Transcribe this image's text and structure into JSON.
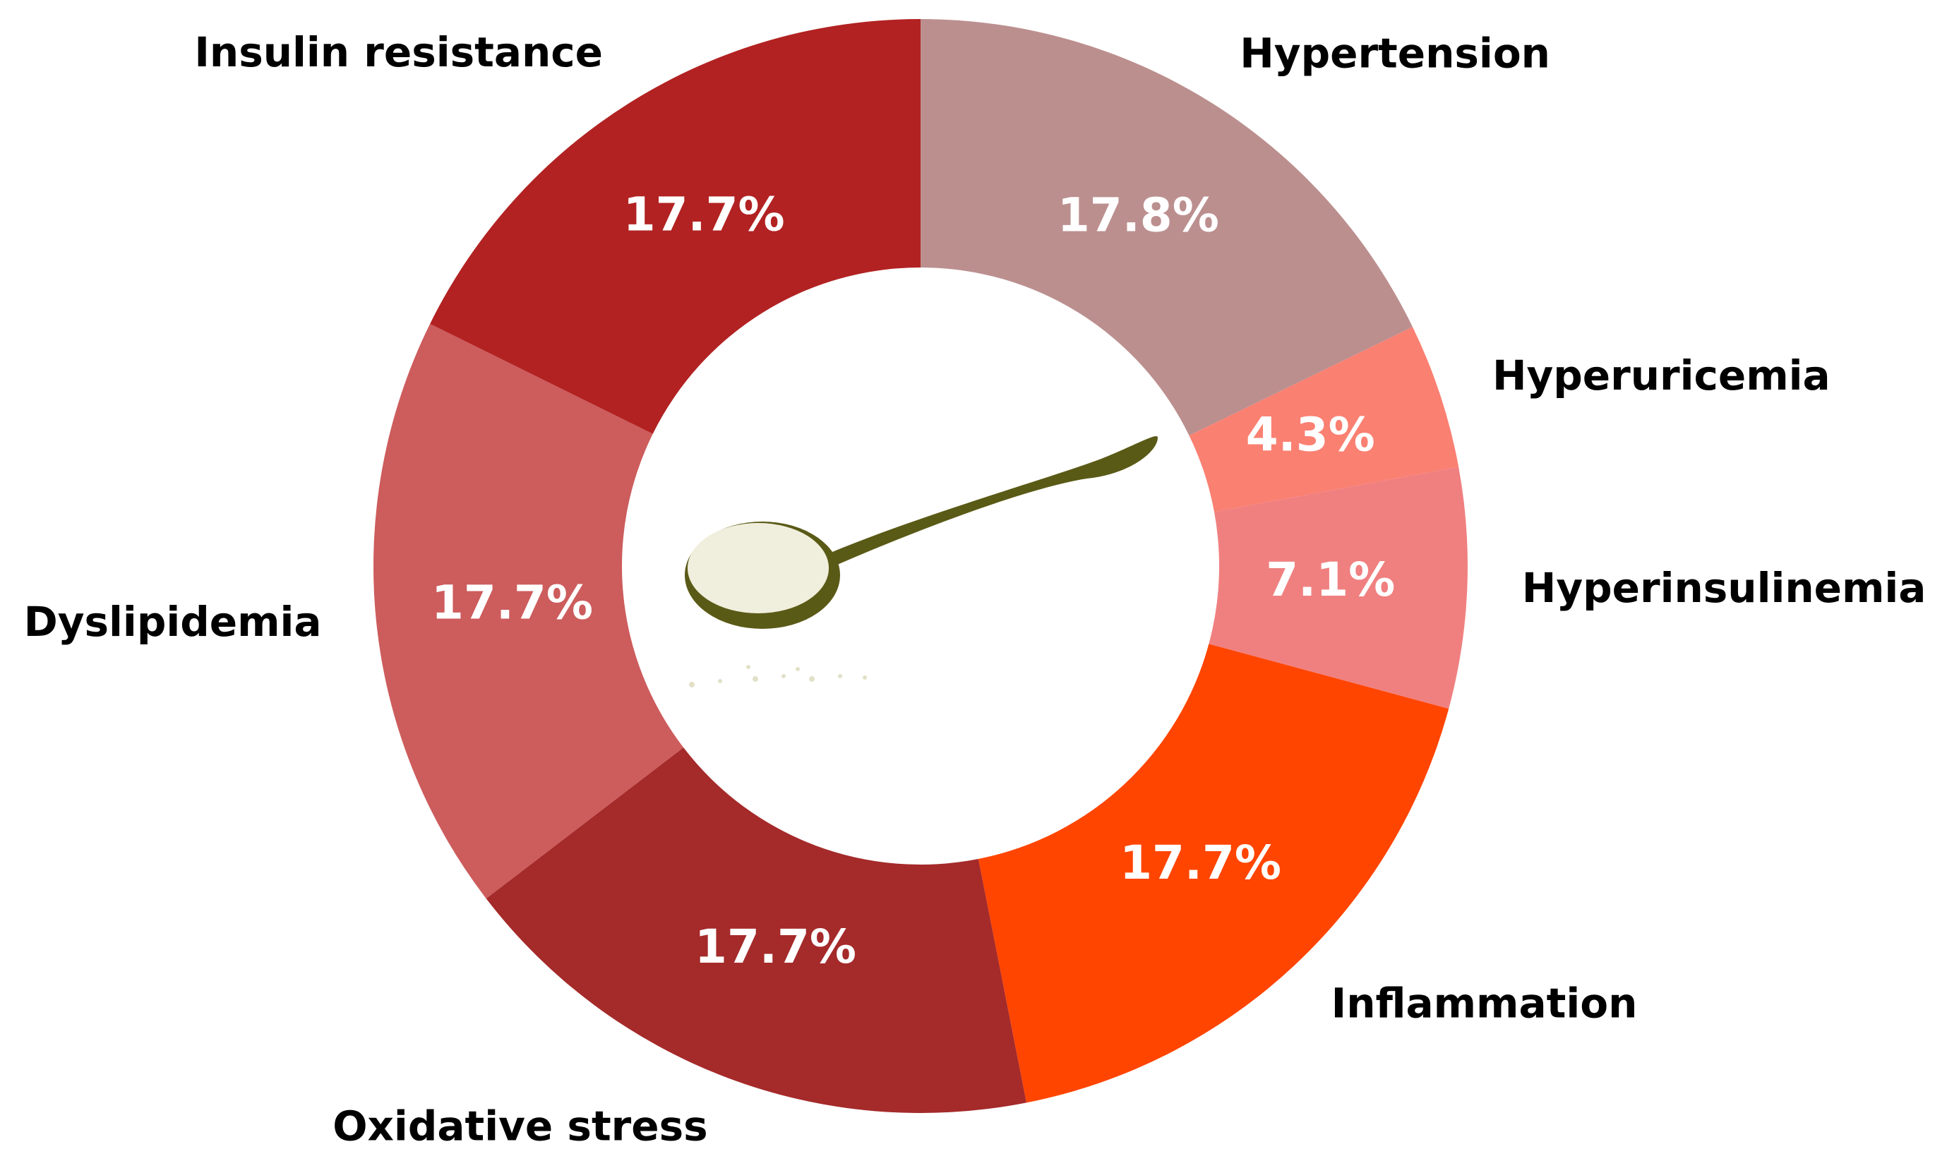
{
  "chart_data": {
    "type": "pie",
    "categories": [
      "Hypertension",
      "Hyperuricemia",
      "Hyperinsulinemia",
      "Inflammation",
      "Oxidative stress",
      "Dyslipidemia",
      "Insulin resistance"
    ],
    "values": [
      17.8,
      4.3,
      7.1,
      17.7,
      17.7,
      17.7,
      17.7
    ],
    "value_labels": [
      "17.8%",
      "4.3%",
      "7.1%",
      "17.7%",
      "17.7%",
      "17.7%",
      "17.7%"
    ],
    "colors": [
      "#bc8f8f",
      "#fa8072",
      "#f08080",
      "#ff4500",
      "#a52a2a",
      "#cd5c5c",
      "#b22222"
    ]
  }
}
